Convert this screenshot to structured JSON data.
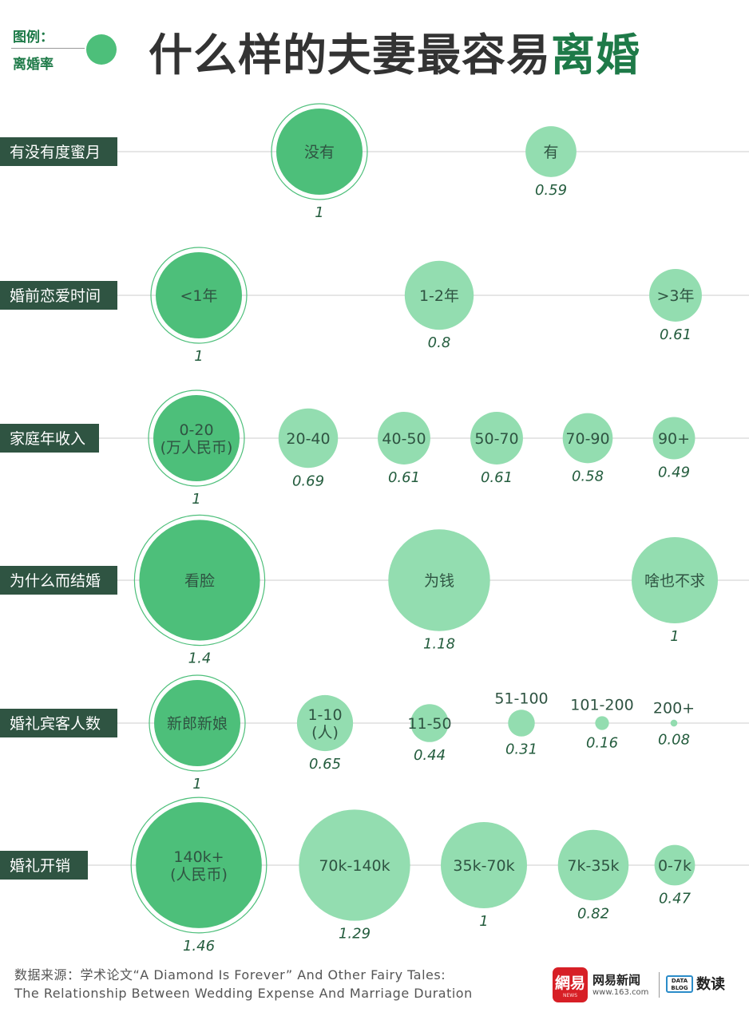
{
  "legend": {
    "title": "图例：",
    "label": "离婚率"
  },
  "title": {
    "prefix": "什么样的夫妻最容易",
    "highlight": "离婚"
  },
  "colors": {
    "dark": "#4dbf7a",
    "light": "#93ddb0",
    "label_bg": "#2f5442",
    "value_text": "#235c3d",
    "ring": "#4dbf7a",
    "line": "#cccccc"
  },
  "chart_data": {
    "type": "bubble",
    "measure": "离婚率",
    "rows": [
      {
        "label": "有没有度蜜月",
        "items": [
          {
            "name": "没有",
            "value": 1,
            "value_label": "1",
            "reference": true
          },
          {
            "name": "有",
            "value": 0.59,
            "value_label": "0.59"
          }
        ]
      },
      {
        "label": "婚前恋爱时间",
        "items": [
          {
            "name": "<1年",
            "value": 1,
            "value_label": "1",
            "reference": true
          },
          {
            "name": "1-2年",
            "value": 0.8,
            "value_label": "0.8"
          },
          {
            "name": ">3年",
            "value": 0.61,
            "value_label": "0.61"
          }
        ]
      },
      {
        "label": "家庭年收入",
        "items": [
          {
            "name": "0-20\n(万人民币)",
            "value": 1,
            "value_label": "1",
            "reference": true
          },
          {
            "name": "20-40",
            "value": 0.69,
            "value_label": "0.69"
          },
          {
            "name": "40-50",
            "value": 0.61,
            "value_label": "0.61"
          },
          {
            "name": "50-70",
            "value": 0.61,
            "value_label": "0.61"
          },
          {
            "name": "70-90",
            "value": 0.58,
            "value_label": "0.58"
          },
          {
            "name": "90+",
            "value": 0.49,
            "value_label": "0.49"
          }
        ]
      },
      {
        "label": "为什么而结婚",
        "items": [
          {
            "name": "看脸",
            "value": 1.4,
            "value_label": "1.4",
            "reference": true
          },
          {
            "name": "为钱",
            "value": 1.18,
            "value_label": "1.18"
          },
          {
            "name": "啥也不求",
            "value": 1,
            "value_label": "1"
          }
        ]
      },
      {
        "label": "婚礼宾客人数",
        "items": [
          {
            "name": "新郎新娘",
            "value": 1,
            "value_label": "1",
            "reference": true
          },
          {
            "name": "1-10\n(人)",
            "value": 0.65,
            "value_label": "0.65"
          },
          {
            "name": "11-50",
            "value": 0.44,
            "value_label": "0.44"
          },
          {
            "name": "51-100",
            "value": 0.31,
            "value_label": "0.31",
            "name_above": true
          },
          {
            "name": "101-200",
            "value": 0.16,
            "value_label": "0.16",
            "name_above": true
          },
          {
            "name": "200+",
            "value": 0.08,
            "value_label": "0.08",
            "name_above": true
          }
        ]
      },
      {
        "label": "婚礼开销",
        "items": [
          {
            "name": "140k+\n(人民币)",
            "value": 1.46,
            "value_label": "1.46",
            "reference": true
          },
          {
            "name": "70k-140k",
            "value": 1.29,
            "value_label": "1.29"
          },
          {
            "name": "35k-70k",
            "value": 1,
            "value_label": "1"
          },
          {
            "name": "7k-35k",
            "value": 0.82,
            "value_label": "0.82"
          },
          {
            "name": "0-7k",
            "value": 0.47,
            "value_label": "0.47"
          }
        ]
      }
    ]
  },
  "footer": {
    "source_line1": "数据来源：学术论文“A Diamond Is Forever” And Other Fairy Tales:",
    "source_line2": "The Relationship Between Wedding Expense And Marriage Duration",
    "logo_text": "網易",
    "logo_sub": "NEWS",
    "brand": "网易新闻",
    "url": "www.163.com",
    "data_icon": "DATA BLOG",
    "data_brand": "数读"
  }
}
